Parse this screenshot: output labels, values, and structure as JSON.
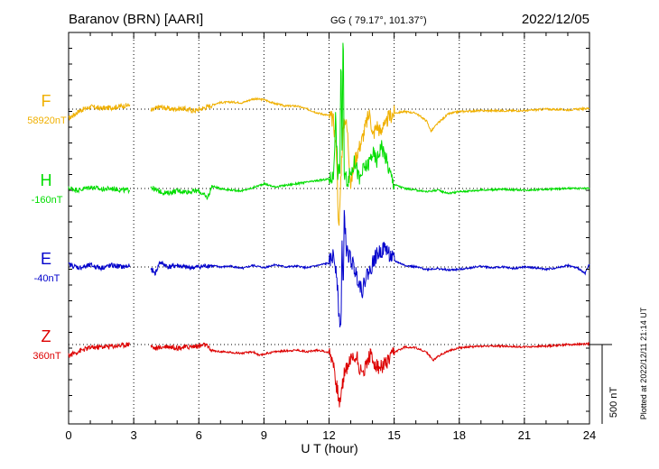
{
  "header": {
    "station": "Baranov (BRN)  [AARI]",
    "coords": "GG ( 79.17°, 101.37°)",
    "date": "2022/12/05"
  },
  "footer": {
    "plotted": "Plotted at 2022/12/11 21:14 UT"
  },
  "chart_data": {
    "type": "line",
    "xlabel": "U T (hour)",
    "xlim": [
      0,
      24
    ],
    "x_ticks": [
      "0",
      "3",
      "6",
      "9",
      "12",
      "15",
      "18",
      "21",
      "24"
    ],
    "scale_bar": {
      "value": 500,
      "label": "500 nT"
    },
    "grid": true,
    "series": [
      {
        "name": "F",
        "baseline": "58920nT",
        "color": "#f0b000",
        "points": [
          [
            0,
            -12
          ],
          [
            0.5,
            -2
          ],
          [
            1,
            3
          ],
          [
            1.5,
            1
          ],
          [
            2,
            2
          ],
          [
            2.5,
            4
          ],
          [
            2.8,
            5
          ],
          [
            3.8,
            -2
          ],
          [
            4.2,
            3
          ],
          [
            4.7,
            0
          ],
          [
            5.2,
            1
          ],
          [
            5.8,
            -2
          ],
          [
            6.3,
            2
          ],
          [
            6.5,
            4
          ],
          [
            6.9,
            8
          ],
          [
            7.5,
            9
          ],
          [
            8,
            8
          ],
          [
            8.5,
            13
          ],
          [
            9,
            12
          ],
          [
            9.5,
            7
          ],
          [
            10,
            4
          ],
          [
            10.5,
            4
          ],
          [
            11,
            0
          ],
          [
            11.5,
            -5
          ],
          [
            12,
            -8
          ],
          [
            12.2,
            -15
          ],
          [
            12.35,
            -55
          ],
          [
            12.45,
            -160
          ],
          [
            12.55,
            -80
          ],
          [
            12.65,
            -25
          ],
          [
            12.75,
            -10
          ],
          [
            12.85,
            -30
          ],
          [
            13,
            -95
          ],
          [
            13.15,
            -70
          ],
          [
            13.3,
            -55
          ],
          [
            13.5,
            -40
          ],
          [
            13.7,
            -20
          ],
          [
            13.8,
            -10
          ],
          [
            13.9,
            -5
          ],
          [
            14,
            -35
          ],
          [
            14.2,
            -20
          ],
          [
            14.4,
            -30
          ],
          [
            14.5,
            -15
          ],
          [
            14.6,
            -25
          ],
          [
            14.7,
            -12
          ],
          [
            15,
            -5
          ],
          [
            15.5,
            -3
          ],
          [
            16,
            -5
          ],
          [
            16.5,
            -15
          ],
          [
            16.7,
            -28
          ],
          [
            17,
            -18
          ],
          [
            17.5,
            -6
          ],
          [
            18,
            -3
          ],
          [
            19,
            -2
          ],
          [
            20,
            -2
          ],
          [
            21,
            -2
          ],
          [
            22,
            0
          ],
          [
            23,
            -1
          ],
          [
            23.5,
            0
          ],
          [
            24,
            1
          ]
        ]
      },
      {
        "name": "H",
        "baseline": "-160nT",
        "color": "#00dd00",
        "points": [
          [
            0,
            0
          ],
          [
            0.5,
            -2
          ],
          [
            1,
            2
          ],
          [
            1.5,
            -1
          ],
          [
            2,
            0
          ],
          [
            2.5,
            -2
          ],
          [
            2.8,
            -2
          ],
          [
            3.8,
            2
          ],
          [
            4,
            -2
          ],
          [
            4.5,
            -6
          ],
          [
            5,
            -3
          ],
          [
            5.5,
            -4
          ],
          [
            6,
            -3
          ],
          [
            6.4,
            -12
          ],
          [
            6.6,
            3
          ],
          [
            7,
            0
          ],
          [
            7.5,
            -2
          ],
          [
            8,
            -3
          ],
          [
            8.5,
            1
          ],
          [
            9,
            6
          ],
          [
            9.5,
            2
          ],
          [
            10,
            4
          ],
          [
            10.5,
            6
          ],
          [
            11,
            8
          ],
          [
            11.5,
            10
          ],
          [
            12,
            12
          ],
          [
            12.2,
            15
          ],
          [
            12.3,
            90
          ],
          [
            12.4,
            20
          ],
          [
            12.5,
            25
          ],
          [
            12.55,
            180
          ],
          [
            12.6,
            40
          ],
          [
            12.65,
            210
          ],
          [
            12.7,
            20
          ],
          [
            12.85,
            10
          ],
          [
            13,
            20
          ],
          [
            13.2,
            35
          ],
          [
            13.4,
            10
          ],
          [
            13.6,
            25
          ],
          [
            13.8,
            30
          ],
          [
            14,
            45
          ],
          [
            14.2,
            35
          ],
          [
            14.4,
            55
          ],
          [
            14.6,
            40
          ],
          [
            14.8,
            20
          ],
          [
            15,
            5
          ],
          [
            15.5,
            0
          ],
          [
            16,
            -2
          ],
          [
            16.5,
            -4
          ],
          [
            17,
            -2
          ],
          [
            17.5,
            -6
          ],
          [
            18,
            -4
          ],
          [
            19,
            -2
          ],
          [
            20,
            -1
          ],
          [
            21,
            -2
          ],
          [
            22,
            -1
          ],
          [
            23,
            0
          ],
          [
            24,
            0
          ]
        ]
      },
      {
        "name": "E",
        "baseline": "-40nT",
        "color": "#0000cc",
        "points": [
          [
            0,
            3
          ],
          [
            0.5,
            -1
          ],
          [
            1,
            2
          ],
          [
            1.5,
            -1
          ],
          [
            2,
            2
          ],
          [
            2.5,
            0
          ],
          [
            2.8,
            1
          ],
          [
            3.8,
            -3
          ],
          [
            4,
            -8
          ],
          [
            4.2,
            6
          ],
          [
            4.6,
            0
          ],
          [
            5,
            2
          ],
          [
            5.5,
            -1
          ],
          [
            6,
            0
          ],
          [
            6.5,
            2
          ],
          [
            7,
            0
          ],
          [
            7.5,
            1
          ],
          [
            8,
            -2
          ],
          [
            8.5,
            2
          ],
          [
            9,
            -1
          ],
          [
            9.5,
            3
          ],
          [
            10,
            0
          ],
          [
            10.5,
            1
          ],
          [
            11,
            -1
          ],
          [
            11.5,
            2
          ],
          [
            12,
            5
          ],
          [
            12.2,
            15
          ],
          [
            12.35,
            -5
          ],
          [
            12.45,
            -60
          ],
          [
            12.55,
            -75
          ],
          [
            12.6,
            30
          ],
          [
            12.65,
            -40
          ],
          [
            12.7,
            70
          ],
          [
            12.8,
            20
          ],
          [
            13,
            10
          ],
          [
            13.2,
            -5
          ],
          [
            13.4,
            -20
          ],
          [
            13.55,
            -30
          ],
          [
            13.7,
            -10
          ],
          [
            13.9,
            -5
          ],
          [
            14,
            5
          ],
          [
            14.2,
            15
          ],
          [
            14.4,
            20
          ],
          [
            14.6,
            25
          ],
          [
            14.8,
            15
          ],
          [
            15,
            8
          ],
          [
            15.5,
            2
          ],
          [
            16,
            0
          ],
          [
            16.5,
            -3
          ],
          [
            17,
            -2
          ],
          [
            17.5,
            -4
          ],
          [
            18,
            -3
          ],
          [
            18.5,
            -1
          ],
          [
            19,
            1
          ],
          [
            19.5,
            -1
          ],
          [
            20,
            0
          ],
          [
            20.5,
            -2
          ],
          [
            21,
            0
          ],
          [
            21.5,
            -1
          ],
          [
            22,
            -3
          ],
          [
            22.5,
            -1
          ],
          [
            23,
            2
          ],
          [
            23.5,
            -2
          ],
          [
            23.8,
            -8
          ],
          [
            24,
            4
          ]
        ]
      },
      {
        "name": "Z",
        "baseline": "360nT",
        "color": "#dd0000",
        "points": [
          [
            0,
            -14
          ],
          [
            0.5,
            -8
          ],
          [
            1,
            -4
          ],
          [
            1.5,
            -3
          ],
          [
            2,
            -2
          ],
          [
            2.5,
            -1
          ],
          [
            2.8,
            1
          ],
          [
            3.8,
            -2
          ],
          [
            4,
            -5
          ],
          [
            4.5,
            -2
          ],
          [
            5,
            -4
          ],
          [
            5.5,
            -3
          ],
          [
            6,
            -2
          ],
          [
            6.3,
            0
          ],
          [
            6.5,
            -6
          ],
          [
            6.7,
            -8
          ],
          [
            7,
            -9
          ],
          [
            7.5,
            -10
          ],
          [
            8,
            -11
          ],
          [
            8.5,
            -9
          ],
          [
            8.8,
            -14
          ],
          [
            9,
            -12
          ],
          [
            9.5,
            -9
          ],
          [
            10,
            -8
          ],
          [
            10.5,
            -7
          ],
          [
            11,
            -9
          ],
          [
            11.5,
            -7
          ],
          [
            12,
            -10
          ],
          [
            12.2,
            -20
          ],
          [
            12.3,
            -45
          ],
          [
            12.4,
            -60
          ],
          [
            12.5,
            -75
          ],
          [
            12.6,
            -55
          ],
          [
            12.7,
            -35
          ],
          [
            13,
            -18
          ],
          [
            13.3,
            -15
          ],
          [
            13.5,
            -40
          ],
          [
            13.7,
            -25
          ],
          [
            13.9,
            -12
          ],
          [
            14,
            -20
          ],
          [
            14.3,
            -30
          ],
          [
            14.6,
            -25
          ],
          [
            14.8,
            -20
          ],
          [
            15,
            -10
          ],
          [
            15.5,
            -3
          ],
          [
            16,
            -4
          ],
          [
            16.5,
            -10
          ],
          [
            16.8,
            -20
          ],
          [
            17,
            -15
          ],
          [
            17.5,
            -8
          ],
          [
            18,
            -4
          ],
          [
            19,
            -2
          ],
          [
            20,
            -2
          ],
          [
            21,
            -3
          ],
          [
            22,
            -2
          ],
          [
            23,
            0
          ],
          [
            24,
            1
          ]
        ]
      }
    ]
  }
}
